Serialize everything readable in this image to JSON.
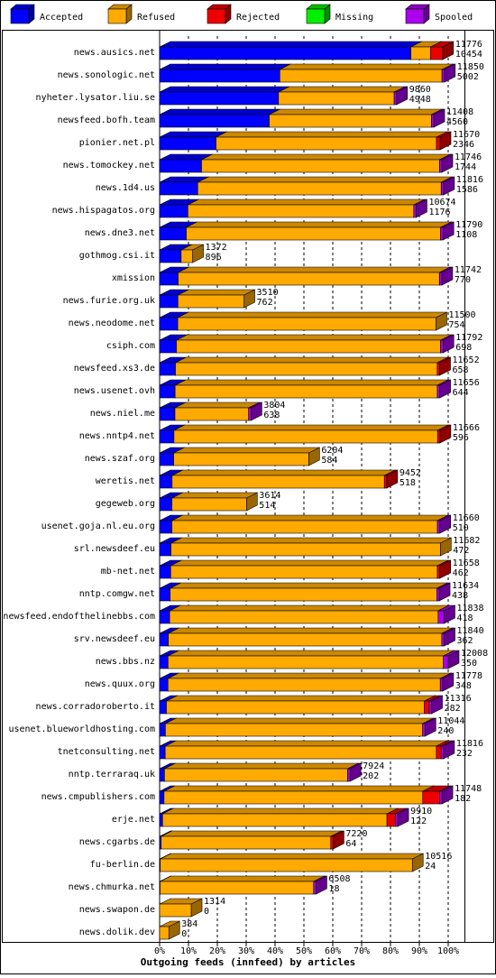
{
  "chart_data": {
    "type": "bar3d",
    "axis_title": "Outgoing feeds (innfeed) by articles",
    "categories": [
      "news.ausics.net",
      "news.sonologic.net",
      "nyheter.lysator.liu.se",
      "newsfeed.bofh.team",
      "pionier.net.pl",
      "news.tomockey.net",
      "news.1d4.us",
      "news.hispagatos.org",
      "news.dne3.net",
      "gothmog.csi.it",
      "xmission",
      "news.furie.org.uk",
      "news.neodome.net",
      "csiph.com",
      "newsfeed.xs3.de",
      "news.usenet.ovh",
      "news.niel.me",
      "news.nntp4.net",
      "news.szaf.org",
      "weretis.net",
      "gegeweb.org",
      "usenet.goja.nl.eu.org",
      "srl.newsdeef.eu",
      "mb-net.net",
      "nntp.comgw.net",
      "newsfeed.endofthelinebbs.com",
      "srv.newsdeef.eu",
      "news.bbs.nz",
      "news.quux.org",
      "news.corradoroberto.it",
      "usenet.blueworldhosting.com",
      "tnetconsulting.net",
      "nntp.terraraq.uk",
      "news.cmpublishers.com",
      "erje.net",
      "news.cgarbs.de",
      "fu-berlin.de",
      "news.chmurka.net",
      "news.swapon.de",
      "news.dolik.dev"
    ],
    "totals": [
      11776,
      11850,
      9860,
      11408,
      11670,
      11746,
      11816,
      10674,
      11790,
      1372,
      11742,
      3510,
      11500,
      11792,
      11652,
      11656,
      3804,
      11666,
      6204,
      9452,
      3614,
      11660,
      11682,
      11658,
      11634,
      11838,
      11840,
      12008,
      11778,
      11316,
      11044,
      11816,
      7924,
      11748,
      9910,
      7220,
      10516,
      6508,
      1314,
      384
    ],
    "series": [
      {
        "name": "Accepted",
        "color": "#0000ff",
        "values": [
          10454,
          5002,
          4948,
          4560,
          2346,
          1744,
          1586,
          1176,
          1108,
          896,
          770,
          762,
          754,
          698,
          658,
          644,
          638,
          596,
          584,
          518,
          514,
          510,
          472,
          462,
          438,
          418,
          362,
          350,
          348,
          282,
          240,
          232,
          202,
          182,
          122,
          64,
          24,
          18,
          0,
          0
        ]
      },
      {
        "name": "Refused",
        "color": "#ffaa00",
        "values": [
          822,
          6748,
          4812,
          6748,
          9174,
          9902,
          10130,
          9398,
          10582,
          476,
          10872,
          2748,
          10746,
          10994,
          10894,
          10912,
          3066,
          10970,
          5620,
          8834,
          3100,
          11050,
          11210,
          11096,
          11096,
          11170,
          11378,
          11458,
          11330,
          10734,
          10704,
          11284,
          7622,
          10766,
          9338,
          7056,
          10492,
          6390,
          1314,
          384
        ]
      },
      {
        "name": "Rejected",
        "color": "#ee0000",
        "values": [
          500,
          0,
          0,
          0,
          150,
          0,
          0,
          0,
          0,
          0,
          0,
          0,
          0,
          0,
          100,
          0,
          0,
          100,
          0,
          100,
          0,
          0,
          0,
          100,
          0,
          0,
          0,
          0,
          0,
          200,
          0,
          200,
          0,
          700,
          350,
          100,
          0,
          0,
          0,
          0
        ]
      },
      {
        "name": "Missing",
        "color": "#00ee00",
        "values": [
          0,
          0,
          0,
          0,
          0,
          0,
          0,
          0,
          0,
          0,
          0,
          0,
          0,
          0,
          0,
          0,
          0,
          0,
          0,
          0,
          0,
          0,
          0,
          0,
          0,
          0,
          0,
          0,
          0,
          0,
          0,
          0,
          0,
          0,
          0,
          0,
          0,
          0,
          0,
          0
        ]
      },
      {
        "name": "Spooled",
        "color": "#aa00ee",
        "values": [
          0,
          100,
          100,
          100,
          0,
          100,
          100,
          100,
          100,
          0,
          100,
          0,
          0,
          100,
          0,
          100,
          100,
          0,
          0,
          0,
          0,
          100,
          0,
          0,
          100,
          250,
          100,
          200,
          100,
          100,
          100,
          100,
          100,
          100,
          100,
          0,
          0,
          100,
          0,
          0
        ]
      }
    ],
    "xlim": [
      0,
      12008
    ],
    "xticks": [
      {
        "value": 0,
        "label": "0%"
      },
      {
        "value": 1200.8,
        "label": "10%"
      },
      {
        "value": 2401.6,
        "label": "20%"
      },
      {
        "value": 3602.4,
        "label": "30%"
      },
      {
        "value": 4803.2,
        "label": "40%"
      },
      {
        "value": 6004,
        "label": "50%"
      },
      {
        "value": 7204.8,
        "label": "60%"
      },
      {
        "value": 8405.6,
        "label": "70%"
      },
      {
        "value": 9606.4,
        "label": "80%"
      },
      {
        "value": 10807.2,
        "label": "90%"
      },
      {
        "value": 12008,
        "label": "100%"
      }
    ],
    "grid": true
  }
}
